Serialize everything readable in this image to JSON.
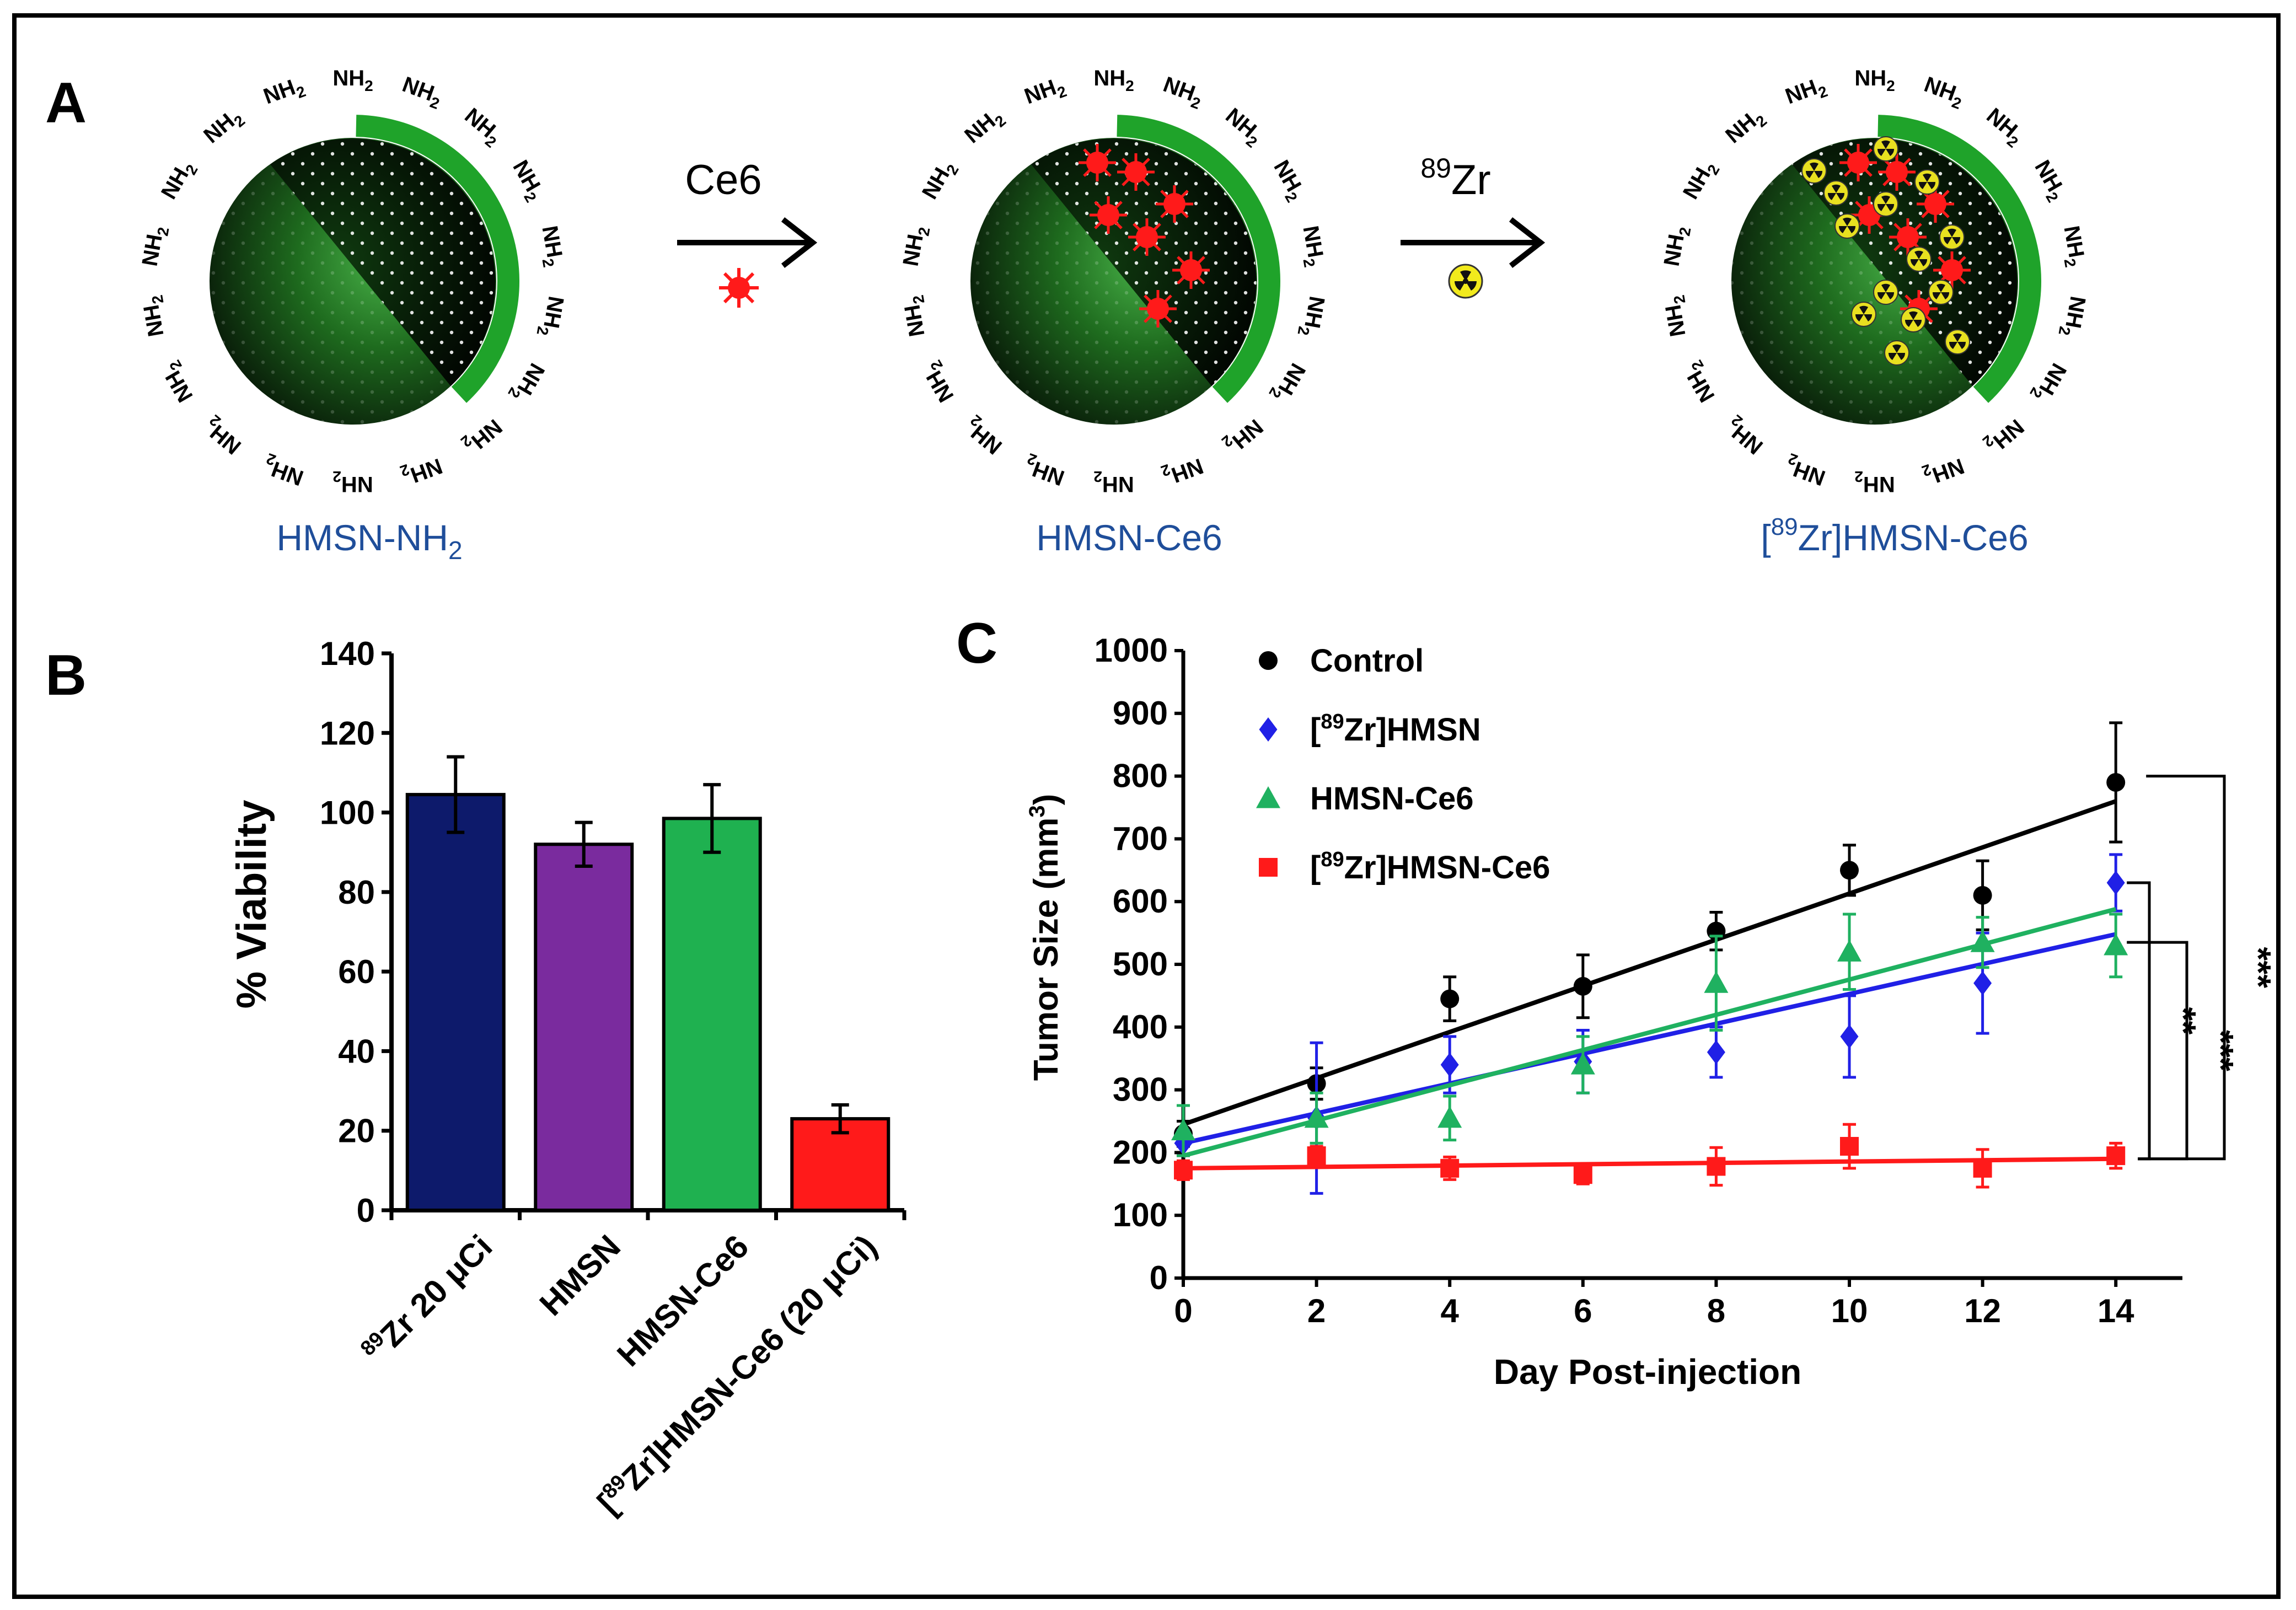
{
  "panels": {
    "a": "A",
    "b": "B",
    "c": "C"
  },
  "schematic": {
    "nanoparticles": [
      {
        "label_main": "HMSN-NH",
        "label_sub": "2",
        "label_sup": "",
        "label_rest": "",
        "payload": "none"
      },
      {
        "label_main": "HMSN-Ce6",
        "label_sub": "",
        "label_sup": "",
        "label_rest": "",
        "payload": "ce6"
      },
      {
        "label_main": "[",
        "label_sub": "",
        "label_sup": "89",
        "label_rest": "Zr]HMSN-Ce6",
        "payload": "ce6+zr"
      }
    ],
    "surface_group": {
      "base": "NH",
      "sub": "2"
    },
    "arrows": [
      {
        "label_sup": "",
        "label": "Ce6",
        "icon": "ce6-star-icon"
      },
      {
        "label_sup": "89",
        "label": "Zr",
        "icon": "radiation-icon"
      }
    ],
    "colors": {
      "shell": "#1fa32a",
      "core_dark": "#0b1a0b",
      "core_light": "#3fa83f",
      "ce6": "#ff1a1a",
      "zr": "#e8e020",
      "label": "#1f4e9a"
    }
  },
  "chart_data": [
    {
      "type": "bar",
      "panel": "B",
      "title": "",
      "ylabel": "% Viability",
      "xlabel": "",
      "ylim": [
        0,
        140
      ],
      "yticks": [
        0,
        20,
        40,
        60,
        80,
        100,
        120,
        140
      ],
      "categories": [
        {
          "sup": "89",
          "text": "Zr 20 μCi"
        },
        {
          "sup": "",
          "text": "HMSN"
        },
        {
          "sup": "",
          "text": "HMSN-Ce6"
        },
        {
          "pre": "[",
          "sup": "89",
          "text": "Zr]HMSN-Ce6 (20  μCi)"
        }
      ],
      "values": [
        104.5,
        92,
        98.5,
        23
      ],
      "errors": [
        9.5,
        5.5,
        8.5,
        3.5
      ],
      "colors": [
        "#0d1a6b",
        "#7a2b9e",
        "#1fb150",
        "#ff1a1a"
      ]
    },
    {
      "type": "scatter",
      "panel": "C",
      "title": "",
      "xlabel": "Day Post-injection",
      "ylabel": {
        "main": "Tumor Size (mm",
        "sup": "3",
        "close": ")"
      },
      "xlim": [
        0,
        15
      ],
      "ylim": [
        0,
        1000
      ],
      "xticks": [
        0,
        2,
        4,
        6,
        8,
        10,
        12,
        14
      ],
      "yticks": [
        0,
        100,
        200,
        300,
        400,
        500,
        600,
        700,
        800,
        900,
        1000
      ],
      "legend_position": "top-left",
      "series": [
        {
          "name": "Control",
          "name_pre": "",
          "name_sup": "",
          "marker": "circle",
          "color": "#000000",
          "x": [
            0,
            2,
            4,
            6,
            8,
            10,
            12,
            14
          ],
          "y": [
            230,
            310,
            445,
            465,
            553,
            650,
            610,
            790
          ],
          "err": [
            20,
            25,
            35,
            50,
            30,
            40,
            55,
            95
          ],
          "fit": [
            245,
            760
          ]
        },
        {
          "name": "Zr]HMSN",
          "name_pre": "[",
          "name_sup": "89",
          "marker": "diamond",
          "color": "#2020e6",
          "x": [
            0,
            2,
            4,
            6,
            8,
            10,
            12,
            14
          ],
          "y": [
            215,
            255,
            340,
            345,
            360,
            385,
            470,
            630
          ],
          "err": [
            20,
            120,
            45,
            50,
            40,
            65,
            80,
            45
          ],
          "fit": [
            215,
            548
          ]
        },
        {
          "name": "HMSN-Ce6",
          "name_pre": "",
          "name_sup": "",
          "marker": "triangle",
          "color": "#1fb160",
          "x": [
            0,
            2,
            4,
            6,
            8,
            10,
            12,
            14
          ],
          "y": [
            235,
            255,
            255,
            340,
            470,
            520,
            535,
            530
          ],
          "err": [
            40,
            40,
            35,
            45,
            75,
            60,
            40,
            50
          ],
          "fit": [
            195,
            588
          ]
        },
        {
          "name": "Zr]HMSN-Ce6",
          "name_pre": "[",
          "name_sup": "89",
          "marker": "square",
          "color": "#ff1a1a",
          "x": [
            0,
            2,
            4,
            6,
            8,
            10,
            12,
            14
          ],
          "y": [
            172,
            195,
            175,
            165,
            178,
            210,
            175,
            195
          ],
          "err": [
            15,
            15,
            18,
            15,
            30,
            35,
            30,
            20
          ],
          "fit": [
            175,
            190
          ]
        }
      ],
      "significance": [
        "***",
        "**",
        "***"
      ]
    }
  ]
}
